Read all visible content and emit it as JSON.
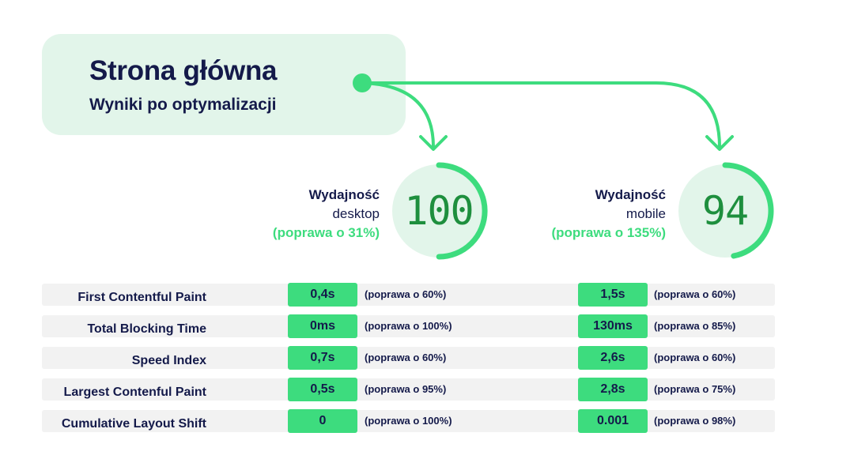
{
  "header": {
    "title": "Strona główna",
    "subtitle": "Wyniki po optymalizacji"
  },
  "scores": {
    "desktop": {
      "label": "Wydajność",
      "device": "desktop",
      "improvement": "(poprawa o 31%)",
      "value": "100",
      "gauge_fraction": 1.0
    },
    "mobile": {
      "label": "Wydajność",
      "device": "mobile",
      "improvement": "(poprawa o 135%)",
      "value": "94",
      "gauge_fraction": 0.94
    }
  },
  "metrics": [
    {
      "name": "First Contentful Paint",
      "desktop_value": "0,4s",
      "desktop_improvement": "(poprawa o 60%)",
      "mobile_value": "1,5s",
      "mobile_improvement": "(poprawa o 60%)"
    },
    {
      "name": "Total Blocking Time",
      "desktop_value": "0ms",
      "desktop_improvement": "(poprawa o 100%)",
      "mobile_value": "130ms",
      "mobile_improvement": "(poprawa o 85%)"
    },
    {
      "name": "Speed Index",
      "desktop_value": "0,7s",
      "desktop_improvement": "(poprawa o 60%)",
      "mobile_value": "2,6s",
      "mobile_improvement": "(poprawa o 60%)"
    },
    {
      "name": "Largest Contenful Paint",
      "desktop_value": "0,5s",
      "desktop_improvement": "(poprawa o 95%)",
      "mobile_value": "2,8s",
      "mobile_improvement": "(poprawa o 75%)"
    },
    {
      "name": "Cumulative Layout Shift",
      "desktop_value": "0",
      "desktop_improvement": "(poprawa o 100%)",
      "mobile_value": "0.001",
      "mobile_improvement": "(poprawa o 98%)"
    }
  ],
  "colors": {
    "navy": "#141a4a",
    "green": "#3ddc7e",
    "dark_green": "#1e8f3e",
    "light_green": "#e2f5ea",
    "row_bg": "#f2f2f2"
  }
}
